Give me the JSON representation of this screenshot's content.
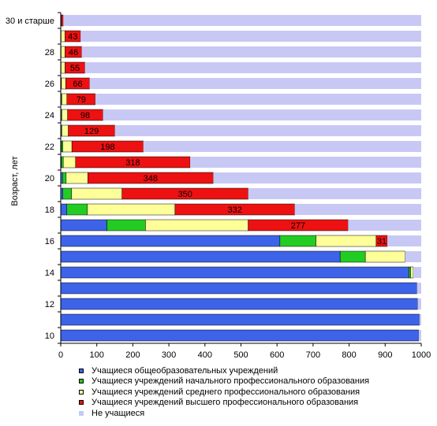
{
  "chart_data": {
    "type": "bar",
    "orientation": "horizontal",
    "stacked": true,
    "ylabel": "Возраст, лет",
    "xlim": [
      0,
      1000
    ],
    "x_ticks": [
      "0",
      "100",
      "200",
      "300",
      "400",
      "500",
      "600",
      "700",
      "800",
      "900",
      "1000"
    ],
    "categories": [
      "10",
      "11",
      "12",
      "13",
      "14",
      "15",
      "16",
      "17",
      "18",
      "19",
      "20",
      "21",
      "22",
      "23",
      "24",
      "25",
      "26",
      "27",
      "28",
      "29",
      "30 и старше"
    ],
    "category_labels_shown": [
      "10",
      "",
      "12",
      "",
      "14",
      "",
      "16",
      "",
      "18",
      "",
      "20",
      "",
      "22",
      "",
      "24",
      "",
      "26",
      "",
      "28",
      "",
      "30 и старше"
    ],
    "legend_placement": "bottom",
    "series": [
      {
        "name": "Учащиеся общеобразовательных учреждений",
        "color": "#3d63e8",
        "values": [
          993,
          995,
          990,
          988,
          966,
          775,
          608,
          128,
          17,
          6,
          5,
          2,
          2,
          1,
          1,
          1,
          1,
          0,
          0,
          0,
          0
        ]
      },
      {
        "name": "Учащиеся учреждений начального профессионального образования",
        "color": "#22cc22",
        "values": [
          0,
          0,
          0,
          0,
          5,
          70,
          100,
          107,
          57,
          24,
          10,
          5,
          4,
          2,
          2,
          2,
          1,
          1,
          1,
          1,
          0
        ]
      },
      {
        "name": "Учащиеся учреждений среднего профессионального образования",
        "color": "#ffff99",
        "values": [
          0,
          0,
          0,
          0,
          7,
          110,
          167,
          285,
          243,
          140,
          60,
          34,
          25,
          18,
          16,
          14,
          12,
          11,
          11,
          11,
          2
        ]
      },
      {
        "name": "Учащиеся учреждений высшего профессионального образования",
        "color": "#ee1111",
        "values": [
          0,
          0,
          0,
          0,
          0,
          0,
          31,
          277,
          332,
          350,
          348,
          318,
          198,
          129,
          98,
          79,
          66,
          55,
          46,
          43,
          5
        ]
      },
      {
        "name": "Не учащиеся",
        "color": "#c8c8f5",
        "values": [
          7,
          5,
          10,
          12,
          22,
          45,
          94,
          203,
          351,
          480,
          577,
          641,
          771,
          850,
          883,
          904,
          920,
          933,
          942,
          945,
          993
        ]
      }
    ],
    "data_labels": {
      "series_index": 3,
      "values": [
        "",
        "",
        "",
        "",
        "",
        "",
        "31",
        "277",
        "332",
        "350",
        "348",
        "318",
        "198",
        "129",
        "98",
        "79",
        "66",
        "55",
        "46",
        "43",
        ""
      ]
    }
  }
}
